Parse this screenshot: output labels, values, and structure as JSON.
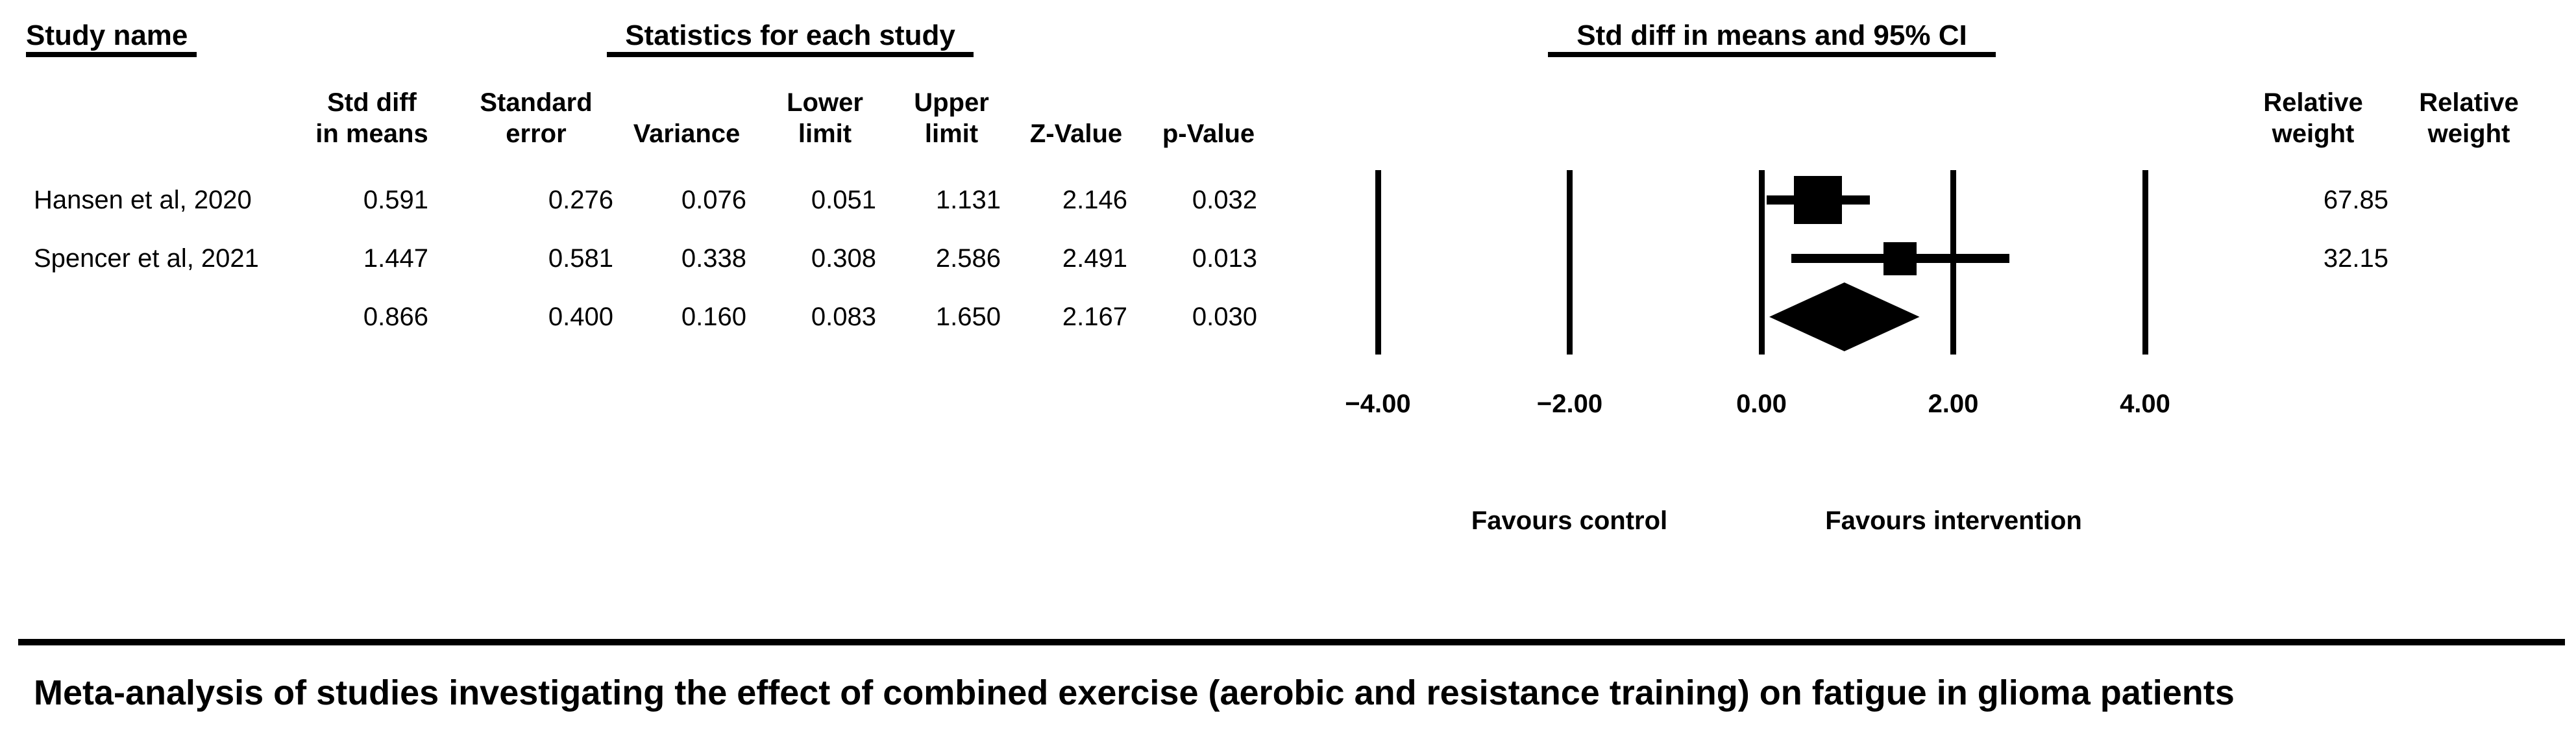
{
  "figure": {
    "section_headers": {
      "study_name": "Study name",
      "statistics": "Statistics for each study",
      "ci_plot": "Std diff in means and 95% CI"
    },
    "column_headers": {
      "std_diff": [
        "Std diff",
        "in means"
      ],
      "standard_error": [
        "Standard",
        "error"
      ],
      "variance": "Variance",
      "lower_limit": [
        "Lower",
        "limit"
      ],
      "upper_limit": [
        "Upper",
        "limit"
      ],
      "z_value": "Z-Value",
      "p_value": "p-Value",
      "relative_weight_1": [
        "Relative",
        "weight"
      ],
      "relative_weight_2": [
        "Relative",
        "weight"
      ]
    },
    "rows": [
      {
        "study": "Hansen et al, 2020",
        "values": [
          "0.591",
          "0.276",
          "0.076",
          "0.051",
          "1.131",
          "2.146",
          "0.032"
        ],
        "relative_weight": "67.85"
      },
      {
        "study": "Spencer et al, 2021",
        "values": [
          "1.447",
          "0.581",
          "0.338",
          "0.308",
          "2.586",
          "2.491",
          "0.013"
        ],
        "relative_weight": "32.15"
      }
    ],
    "summary_row": {
      "values": [
        "0.866",
        "0.400",
        "0.160",
        "0.083",
        "1.650",
        "2.167",
        "0.030"
      ]
    },
    "favours_left": "Favours control",
    "favours_right": "Favours intervention",
    "caption": "Meta-analysis of studies investigating the effect of combined exercise (aerobic and resistance training) on fatigue in glioma patients",
    "colors": {
      "ink": "#000000",
      "background": "#ffffff"
    }
  },
  "chart_data": {
    "type": "forest",
    "title": "Std diff in means and 95% CI",
    "effect_measure": "Std diff in means",
    "x_axis": {
      "range": [
        -4,
        4
      ],
      "ticks": [
        -4,
        -2,
        0,
        2,
        4
      ],
      "tick_labels": [
        "−4.00",
        "−2.00",
        "0.00",
        "2.00",
        "4.00"
      ],
      "gridlines": "vertical reference line at each tick"
    },
    "studies": [
      {
        "name": "Hansen et al, 2020",
        "std_diff_in_means": 0.591,
        "standard_error": 0.276,
        "variance": 0.076,
        "lower_limit": 0.051,
        "upper_limit": 1.131,
        "z_value": 2.146,
        "p_value": 0.032,
        "relative_weight": 67.85,
        "marker": "square"
      },
      {
        "name": "Spencer et al, 2021",
        "std_diff_in_means": 1.447,
        "standard_error": 0.581,
        "variance": 0.338,
        "lower_limit": 0.308,
        "upper_limit": 2.586,
        "z_value": 2.491,
        "p_value": 0.013,
        "relative_weight": 32.15,
        "marker": "square"
      }
    ],
    "summary": {
      "std_diff_in_means": 0.866,
      "standard_error": 0.4,
      "variance": 0.16,
      "lower_limit": 0.083,
      "upper_limit": 1.65,
      "z_value": 2.167,
      "p_value": 0.03,
      "relative_weight": null,
      "marker": "diamond"
    },
    "annotations": {
      "left": "Favours control",
      "right": "Favours intervention"
    },
    "legend": null
  }
}
